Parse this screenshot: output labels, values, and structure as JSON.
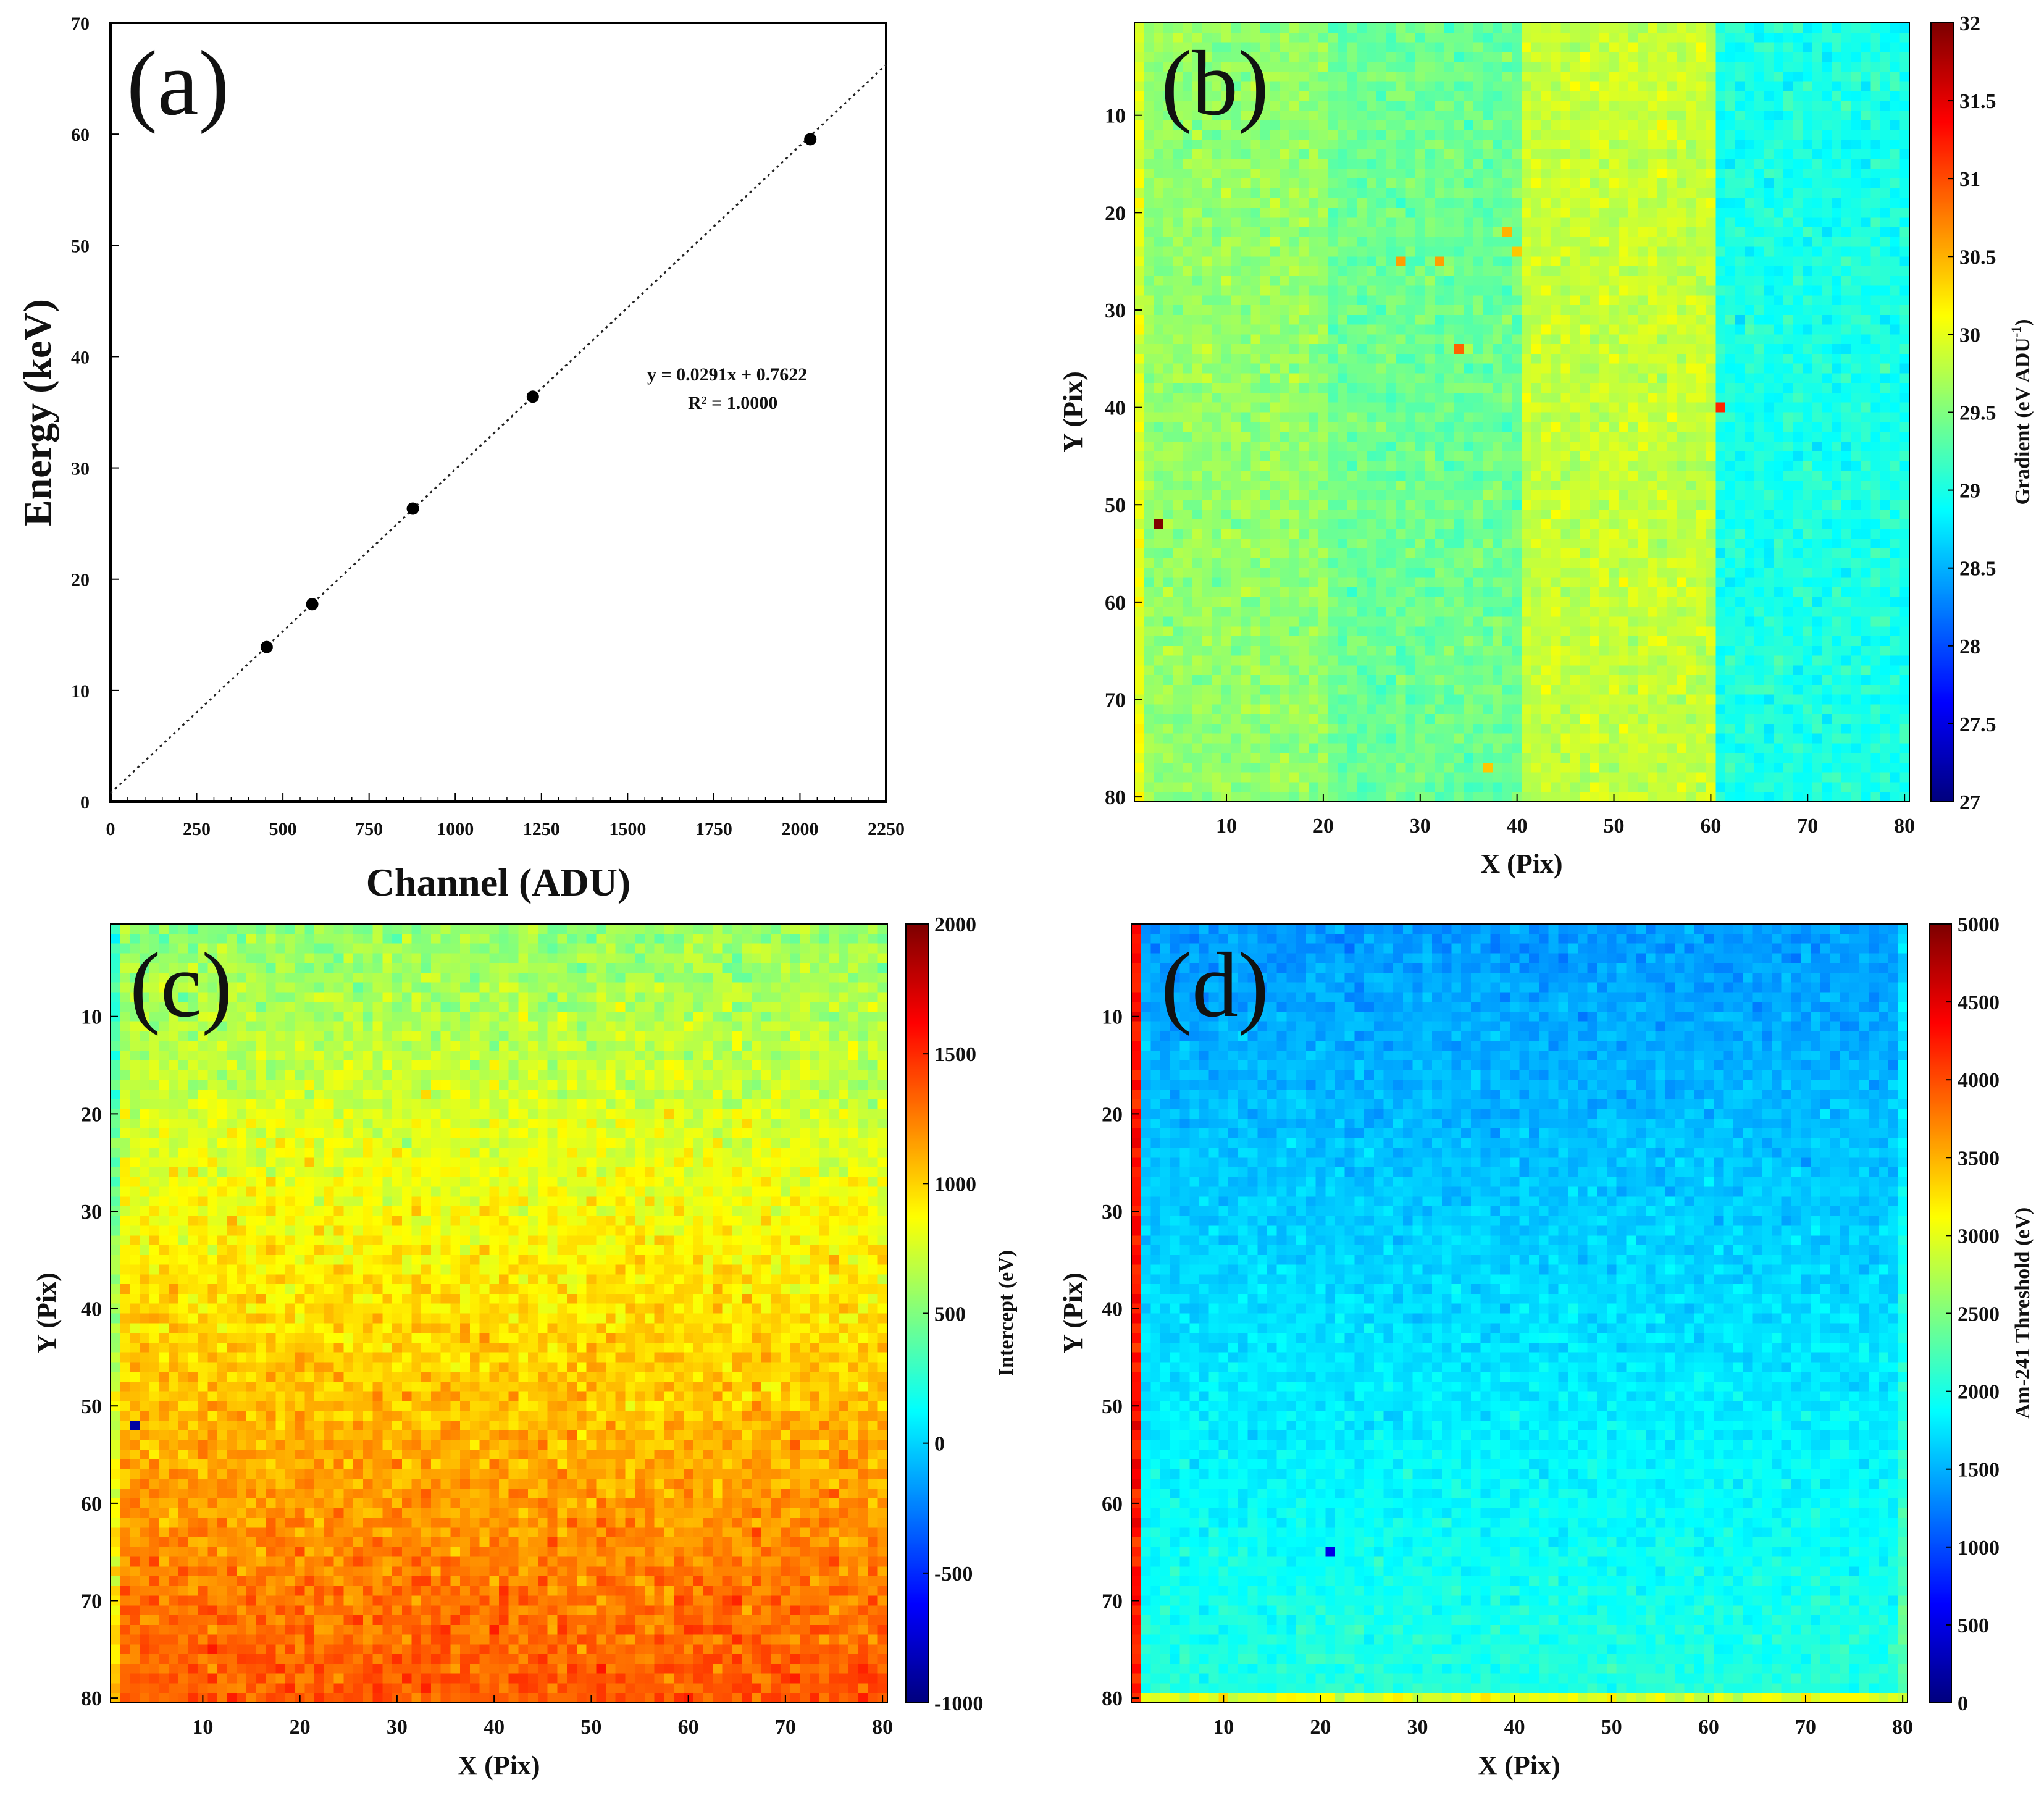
{
  "chart_data": [
    {
      "panel": "(a)",
      "type": "scatter",
      "xlabel": "Channel (ADU)",
      "ylabel": "Energy (keV)",
      "xlim": [
        0,
        2250
      ],
      "ylim": [
        0,
        70
      ],
      "xticks": [
        "0",
        "250",
        "500",
        "750",
        "1000",
        "1250",
        "1500",
        "1750",
        "2000",
        "2250"
      ],
      "yticks": [
        "0",
        "10",
        "20",
        "30",
        "40",
        "50",
        "60",
        "70"
      ],
      "points": [
        [
          453,
          13.9
        ],
        [
          585,
          17.75
        ],
        [
          877,
          26.34
        ],
        [
          1225,
          36.4
        ],
        [
          2030,
          59.54
        ]
      ],
      "fit": {
        "slope": 0.0291,
        "intercept": 0.7622,
        "style": "dotted"
      },
      "equation": "y = 0.0291x + 0.7622",
      "r_squared": "R² = 1.0000"
    },
    {
      "panel": "(b)",
      "type": "heatmap",
      "xlabel": "X (Pix)",
      "ylabel": "Y (Pix)",
      "xticks": [
        "10",
        "20",
        "30",
        "40",
        "50",
        "60",
        "70",
        "80"
      ],
      "yticks": [
        "10",
        "20",
        "30",
        "40",
        "50",
        "60",
        "70",
        "80"
      ],
      "grid_size": [
        80,
        80
      ],
      "colorbar_label": "Gradient (eV ADU",
      "colorbar_label_sup": "-1",
      "colorbar_label_close": ")",
      "colorbar_range": [
        27,
        32
      ],
      "colorbar_ticks": [
        "27",
        "27.5",
        "28",
        "28.5",
        "29",
        "29.5",
        "30",
        "30.5",
        "31",
        "31.5",
        "32"
      ],
      "column_bands": [
        {
          "x_from": 1,
          "x_to": 20,
          "mean": 29.6
        },
        {
          "x_from": 21,
          "x_to": 40,
          "mean": 29.4
        },
        {
          "x_from": 41,
          "x_to": 60,
          "mean": 29.85
        },
        {
          "x_from": 61,
          "x_to": 80,
          "mean": 29.0
        }
      ],
      "outliers": [
        [
          3,
          52,
          32.0
        ],
        [
          61,
          40,
          31.2
        ],
        [
          28,
          25,
          30.6
        ],
        [
          32,
          25,
          30.6
        ],
        [
          34,
          34,
          30.9
        ],
        [
          39,
          22,
          30.5
        ],
        [
          40,
          24,
          30.4
        ],
        [
          37,
          77,
          30.4
        ]
      ]
    },
    {
      "panel": "(c)",
      "type": "heatmap",
      "xlabel": "X (Pix)",
      "ylabel": "Y (Pix)",
      "xticks": [
        "10",
        "20",
        "30",
        "40",
        "50",
        "60",
        "70",
        "80"
      ],
      "yticks": [
        "10",
        "20",
        "30",
        "40",
        "50",
        "60",
        "70",
        "80"
      ],
      "grid_size": [
        80,
        80
      ],
      "colorbar_label": "Intercept (eV)",
      "colorbar_range": [
        -1000,
        2000
      ],
      "colorbar_ticks": [
        "-1000",
        "-500",
        "0",
        "500",
        "1000",
        "1500",
        "2000"
      ],
      "row_trend": {
        "top": 560,
        "bottom": 1380
      },
      "outliers": [
        [
          3,
          52,
          -900
        ]
      ]
    },
    {
      "panel": "(d)",
      "type": "heatmap",
      "xlabel": "X (Pix)",
      "ylabel": "Y (Pix)",
      "xticks": [
        "10",
        "20",
        "30",
        "40",
        "50",
        "60",
        "70",
        "80"
      ],
      "yticks": [
        "10",
        "20",
        "30",
        "40",
        "50",
        "60",
        "70",
        "80"
      ],
      "grid_size": [
        80,
        80
      ],
      "colorbar_label": "Am-241 Threshold (eV)",
      "colorbar_range": [
        0,
        5000
      ],
      "colorbar_ticks": [
        "0",
        "500",
        "1000",
        "1500",
        "2000",
        "2500",
        "3000",
        "3500",
        "4000",
        "4500",
        "5000"
      ],
      "row_trend": {
        "top": 1380,
        "bottom": 2050
      },
      "edge_column_x1": 4300,
      "edge_row_y80": 3000,
      "outliers": [
        [
          21,
          65,
          500
        ]
      ]
    }
  ]
}
